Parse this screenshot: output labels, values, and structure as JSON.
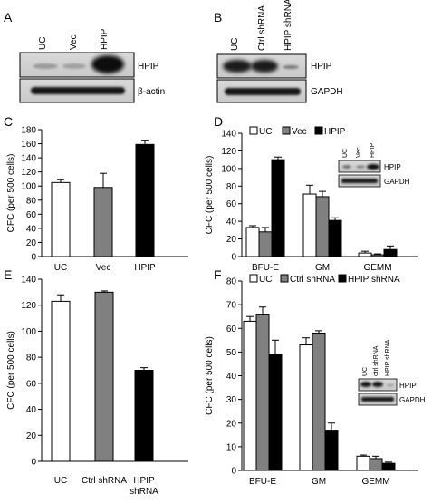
{
  "panels": {
    "A": {
      "letter": "A",
      "lanes": [
        "UC",
        "Vec",
        "HPIP"
      ],
      "rows": [
        "HPIP",
        "β-actin"
      ]
    },
    "B": {
      "letter": "B",
      "lanes": [
        "UC",
        "Ctrl shRNA",
        "HPIP shRNA"
      ],
      "rows": [
        "HPIP",
        "GAPDH"
      ]
    },
    "C": {
      "letter": "C"
    },
    "D": {
      "letter": "D",
      "inset": {
        "lanes": [
          "UC",
          "Vec",
          "HPIP"
        ],
        "rows": [
          "HPIP",
          "GAPDH"
        ]
      }
    },
    "E": {
      "letter": "E"
    },
    "F": {
      "letter": "F",
      "inset": {
        "lanes": [
          "UC",
          "ctrl shRNA",
          "HPIP shRNA"
        ],
        "rows": [
          "HPIP",
          "GAPDH"
        ]
      }
    }
  },
  "chart_data": [
    {
      "id": "C",
      "type": "bar",
      "ylabel": "CFC (per 500 cells)",
      "ylim": [
        0,
        180
      ],
      "yticks": [
        0,
        20,
        40,
        60,
        80,
        100,
        120,
        140,
        160,
        180
      ],
      "categories": [
        "UC",
        "Vec",
        "HPIP"
      ],
      "values": [
        105,
        98,
        159
      ],
      "errors": [
        4,
        20,
        6
      ],
      "colors": [
        "#ffffff",
        "#808080",
        "#000000"
      ]
    },
    {
      "id": "D",
      "type": "bar",
      "ylabel": "CFC (per 500 cells)",
      "ylim": [
        0,
        140
      ],
      "yticks": [
        0,
        20,
        40,
        60,
        80,
        100,
        120,
        140
      ],
      "categories": [
        "BFU-E",
        "GM",
        "GEMM"
      ],
      "series": [
        {
          "name": "UC",
          "color": "#ffffff",
          "values": [
            33,
            71,
            4
          ],
          "errors": [
            2,
            10,
            2
          ]
        },
        {
          "name": "Vec",
          "color": "#808080",
          "values": [
            28,
            68,
            2
          ],
          "errors": [
            5,
            6,
            1
          ]
        },
        {
          "name": "HPIP",
          "color": "#000000",
          "values": [
            110,
            41,
            8
          ],
          "errors": [
            3,
            3,
            4
          ]
        }
      ]
    },
    {
      "id": "E",
      "type": "bar",
      "ylabel": "CFC (per 500 cells)",
      "ylim": [
        0,
        140
      ],
      "yticks": [
        0,
        20,
        40,
        60,
        80,
        100,
        120,
        140
      ],
      "categories": [
        "UC",
        "Ctrl shRNA",
        "HPIP shRNA"
      ],
      "values": [
        123,
        130,
        70
      ],
      "errors": [
        5,
        1,
        2
      ],
      "colors": [
        "#ffffff",
        "#808080",
        "#000000"
      ]
    },
    {
      "id": "F",
      "type": "bar",
      "ylabel": "CFC (per 500 cells)",
      "ylim": [
        0,
        80
      ],
      "yticks": [
        0,
        10,
        20,
        30,
        40,
        50,
        60,
        70,
        80
      ],
      "categories": [
        "BFU-E",
        "GM",
        "GEMM"
      ],
      "series": [
        {
          "name": "UC",
          "color": "#ffffff",
          "values": [
            63,
            53,
            6
          ],
          "errors": [
            2,
            3,
            0.5
          ]
        },
        {
          "name": "Ctrl shRNA",
          "color": "#808080",
          "values": [
            66,
            58,
            5
          ],
          "errors": [
            3,
            1,
            1
          ]
        },
        {
          "name": "HPIP shRNA",
          "color": "#000000",
          "values": [
            49,
            17,
            3
          ],
          "errors": [
            6,
            3,
            0.5
          ]
        }
      ]
    }
  ]
}
